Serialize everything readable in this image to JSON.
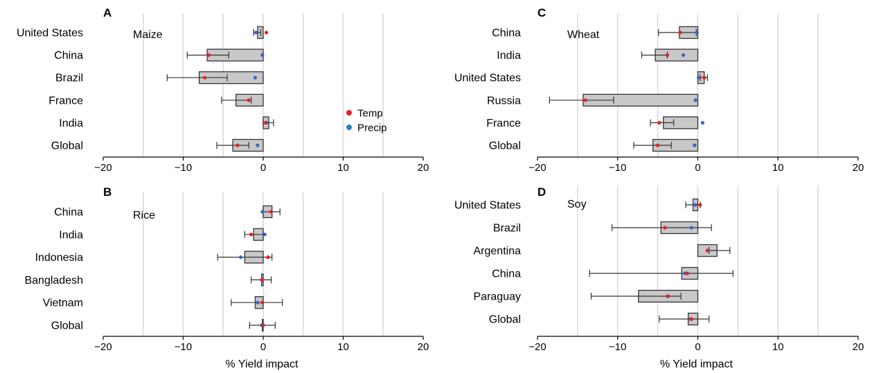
{
  "colors": {
    "bar_fill": "#c8c8c8",
    "bar_stroke": "#333333",
    "grid": "#d9d9d9",
    "temp": "#e6211f",
    "precip": "#3b63c4",
    "errorbar": "#333333"
  },
  "legend": [
    {
      "label": "Temp",
      "color": "#e6211f"
    },
    {
      "label": "Precip",
      "color": "#2b7fc7"
    }
  ],
  "chart_data": [
    {
      "type": "bar",
      "orientation": "horizontal",
      "panel": "A",
      "title": "Maize",
      "xlabel": "",
      "xlim": [
        -20,
        20
      ],
      "xticks": [
        "−20",
        "−10",
        "0",
        "10",
        "20"
      ],
      "grid": true,
      "categories": [
        "United States",
        "China",
        "Brazil",
        "France",
        "India",
        "Global"
      ],
      "values": [
        -0.7,
        -7.0,
        -8.0,
        -3.4,
        0.7,
        -3.8
      ],
      "error_low": [
        -1.2,
        -9.5,
        -12.0,
        -5.2,
        0.0,
        -5.8
      ],
      "error_high": [
        -0.3,
        -4.3,
        -4.5,
        -1.5,
        1.3,
        -1.8
      ],
      "temp": [
        0.4,
        -6.8,
        -7.3,
        -1.8,
        0.3,
        -3.2
      ],
      "precip": [
        -0.9,
        -0.1,
        -1.0,
        -1.8,
        0.4,
        -0.7
      ]
    },
    {
      "type": "bar",
      "orientation": "horizontal",
      "panel": "B",
      "title": "Rice",
      "xlabel": "% Yield impact",
      "xlim": [
        -20,
        20
      ],
      "xticks": [
        "−20",
        "−10",
        "0",
        "10",
        "20"
      ],
      "grid": true,
      "categories": [
        "China",
        "India",
        "Indonesia",
        "Bangladesh",
        "Vietnam",
        "Global"
      ],
      "values": [
        1.1,
        -1.2,
        -2.3,
        -0.2,
        -1.0,
        -0.1
      ],
      "error_low": [
        0.0,
        -2.3,
        -5.7,
        -1.5,
        -4.0,
        -1.7
      ],
      "error_high": [
        2.1,
        0.0,
        1.1,
        1.0,
        2.4,
        1.5
      ],
      "temp": [
        1.0,
        -1.5,
        0.6,
        -0.1,
        -0.1,
        0.0
      ],
      "precip": [
        -0.1,
        0.2,
        -2.8,
        -0.2,
        -0.7,
        -0.2
      ]
    },
    {
      "type": "bar",
      "orientation": "horizontal",
      "panel": "C",
      "title": "Wheat",
      "xlabel": "",
      "xlim": [
        -20,
        20
      ],
      "xticks": [
        "−20",
        "−10",
        "0",
        "10",
        "20"
      ],
      "grid": true,
      "categories": [
        "China",
        "India",
        "United States",
        "Russia",
        "France",
        "Global"
      ],
      "values": [
        -2.3,
        -5.3,
        0.8,
        -14.3,
        -4.3,
        -5.6
      ],
      "error_low": [
        -4.9,
        -7.0,
        0.3,
        -18.5,
        -5.9,
        -8.0
      ],
      "error_high": [
        -0.2,
        -3.8,
        1.2,
        -10.5,
        -3.0,
        -3.3
      ],
      "temp": [
        -2.2,
        -3.8,
        0.8,
        -14.0,
        -4.8,
        -5.0
      ],
      "precip": [
        -0.1,
        -1.8,
        0.1,
        -0.3,
        0.6,
        -0.4
      ]
    },
    {
      "type": "bar",
      "orientation": "horizontal",
      "panel": "D",
      "title": "Soy",
      "xlabel": "% Yield impact",
      "xlim": [
        -20,
        20
      ],
      "xticks": [
        "−20",
        "−10",
        "0",
        "10",
        "20"
      ],
      "grid": true,
      "categories": [
        "United States",
        "Brazil",
        "Argentina",
        "China",
        "Paraguay",
        "Global"
      ],
      "values": [
        -0.6,
        -4.6,
        2.4,
        -2.0,
        -7.4,
        -1.2
      ],
      "error_low": [
        -1.5,
        -10.7,
        1.4,
        -13.5,
        -13.3,
        -4.8
      ],
      "error_high": [
        0.3,
        1.7,
        4.0,
        4.4,
        -2.1,
        1.4
      ],
      "temp": [
        0.3,
        -4.1,
        1.2,
        -1.3,
        -3.7,
        -0.8
      ],
      "precip": [
        -0.3,
        -0.8,
        1.3,
        -1.6,
        -3.8,
        -0.9
      ]
    }
  ]
}
